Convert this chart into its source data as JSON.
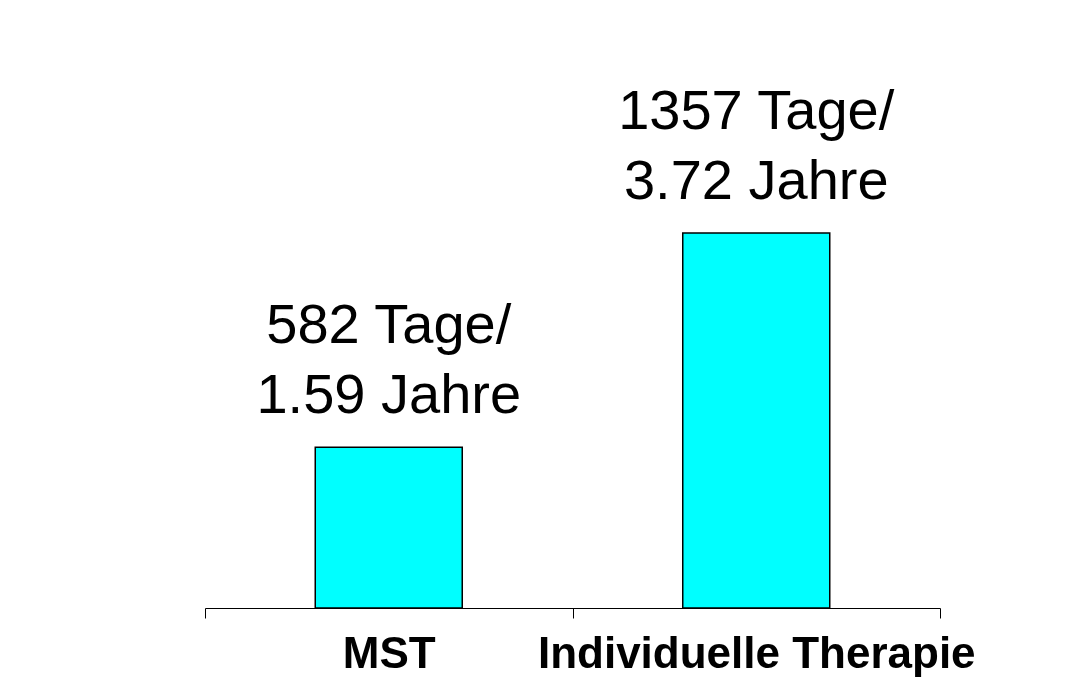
{
  "chart_data": {
    "type": "bar",
    "categories": [
      "MST",
      "Individuelle Therapie"
    ],
    "values": [
      582,
      1357
    ],
    "color": "#00ffff",
    "value_labels": [
      "582 Tage/\n1.59 Jahre",
      "1357 Tage/\n3.72 Jahre"
    ]
  }
}
